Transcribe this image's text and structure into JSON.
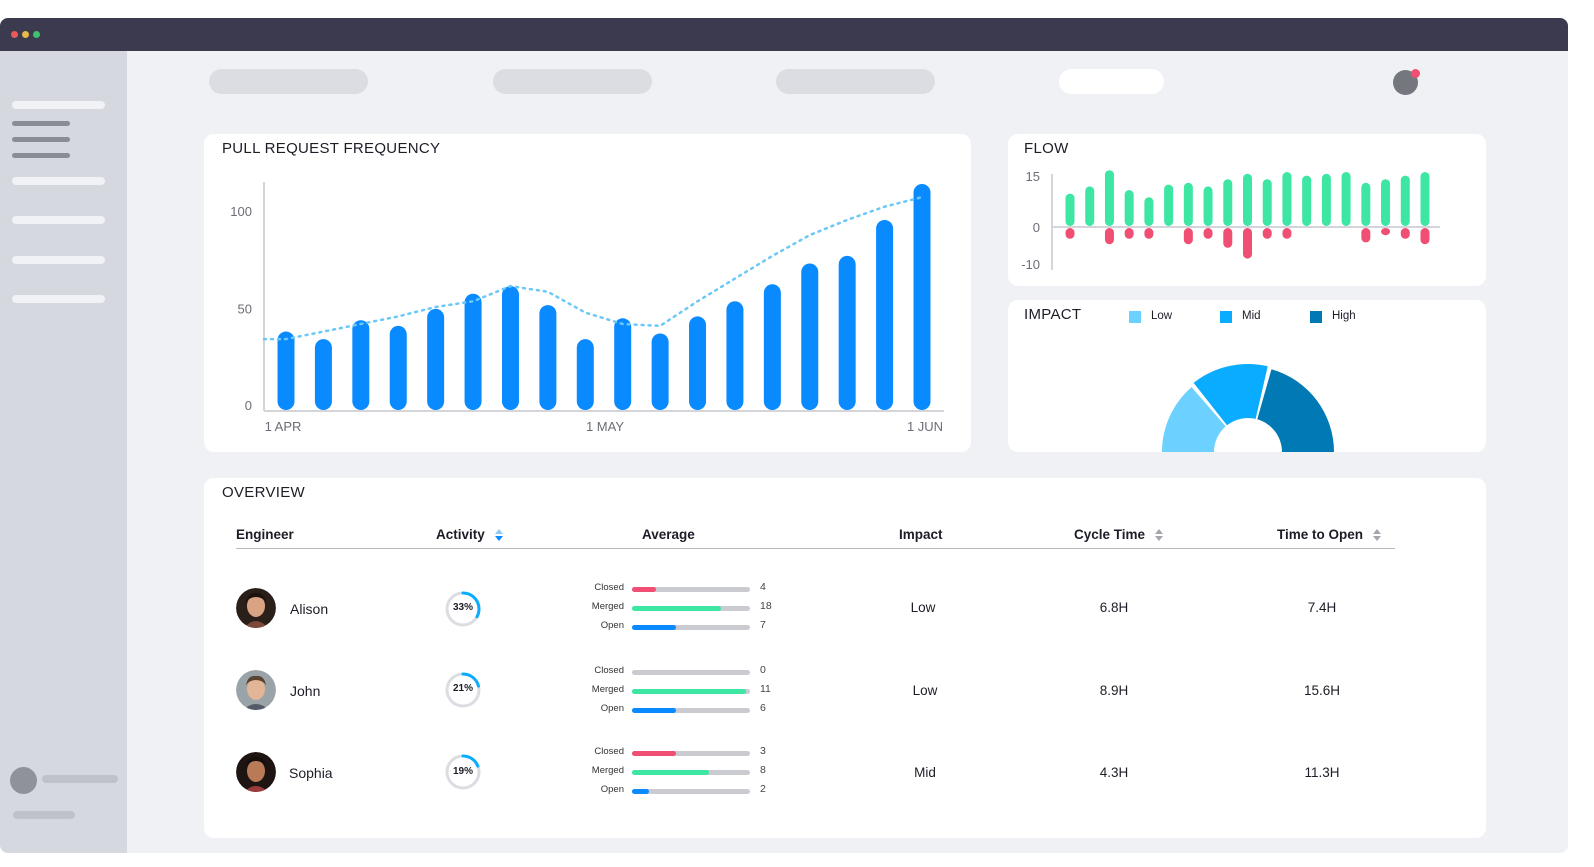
{
  "window": {
    "dots": [
      "#e95b5b",
      "#e9b84a",
      "#3fc06b"
    ]
  },
  "colors": {
    "bar_blue": "#0a8aff",
    "trend": "#6cc8f5",
    "positive": "#3ee6a3",
    "negative": "#f04e73",
    "low": "#6cd1ff",
    "mid": "#09acff",
    "high": "#0079b5",
    "notify": "#f04e73"
  },
  "pull_requests": {
    "title": "PULL REQUEST FREQUENCY",
    "chart_data": {
      "type": "bar",
      "title": "PULL REQUEST FREQUENCY",
      "x_tick_labels": [
        "1 APR",
        "1 MAY",
        "1 JUN"
      ],
      "y_tick_labels": [
        "0",
        "50",
        "100"
      ],
      "ylim": [
        0,
        120
      ],
      "values": [
        42,
        38,
        48,
        45,
        54,
        62,
        66,
        56,
        38,
        49,
        41,
        50,
        58,
        67,
        78,
        82,
        101,
        120
      ],
      "trend_values": [
        38,
        42,
        46,
        50,
        55,
        58,
        66,
        63,
        52,
        46,
        45,
        58,
        70,
        82,
        93,
        101,
        108,
        113
      ],
      "grid": false
    }
  },
  "flow": {
    "title": "FLOW",
    "chart_data": {
      "type": "bar",
      "title": "FLOW",
      "y_tick_labels": [
        "15",
        "0",
        "-10"
      ],
      "ylim": [
        -10,
        15
      ],
      "positive": [
        9,
        11,
        15.5,
        10,
        8,
        11.5,
        12,
        11,
        13,
        14.5,
        13,
        15,
        14,
        14.5,
        15,
        12,
        13,
        14,
        15
      ],
      "negative": [
        -3,
        0,
        -4.5,
        -3,
        -3,
        0,
        -4.5,
        -3,
        -5.5,
        -8.5,
        -3,
        -3,
        0,
        0,
        0,
        -4,
        -2,
        -3,
        -4.5
      ]
    }
  },
  "impact": {
    "title": "IMPACT",
    "legend": [
      {
        "label": "Low",
        "color": "#6cd1ff"
      },
      {
        "label": "Mid",
        "color": "#09acff"
      },
      {
        "label": "High",
        "color": "#0079b5"
      }
    ],
    "chart_data": {
      "type": "pie",
      "categories": [
        "Low",
        "Mid",
        "High"
      ],
      "values": [
        28,
        30,
        42
      ]
    }
  },
  "overview": {
    "title": "OVERVIEW",
    "columns": {
      "engineer": "Engineer",
      "activity": "Activity",
      "average": "Average",
      "impact": "Impact",
      "cycle_time": "Cycle Time",
      "time_to_open": "Time to Open"
    },
    "avg_labels": {
      "closed": "Closed",
      "merged": "Merged",
      "open": "Open"
    },
    "rows": [
      {
        "name": "Alison",
        "activity": "33%",
        "activity_pct": 33,
        "closed": "4",
        "merged": "18",
        "open": "7",
        "closed_frac": 0.2,
        "merged_frac": 0.75,
        "open_frac": 0.37,
        "impact": "Low",
        "cycle_time": "6.8H",
        "time_to_open": "7.4H"
      },
      {
        "name": "John",
        "activity": "21%",
        "activity_pct": 21,
        "closed": "0",
        "merged": "11",
        "open": "6",
        "closed_frac": 0,
        "merged_frac": 0.97,
        "open_frac": 0.37,
        "impact": "Low",
        "cycle_time": "8.9H",
        "time_to_open": "15.6H"
      },
      {
        "name": "Sophia",
        "activity": "19%",
        "activity_pct": 19,
        "closed": "3",
        "merged": "8",
        "open": "2",
        "closed_frac": 0.37,
        "merged_frac": 0.65,
        "open_frac": 0.14,
        "impact": "Mid",
        "cycle_time": "4.3H",
        "time_to_open": "11.3H"
      }
    ]
  }
}
